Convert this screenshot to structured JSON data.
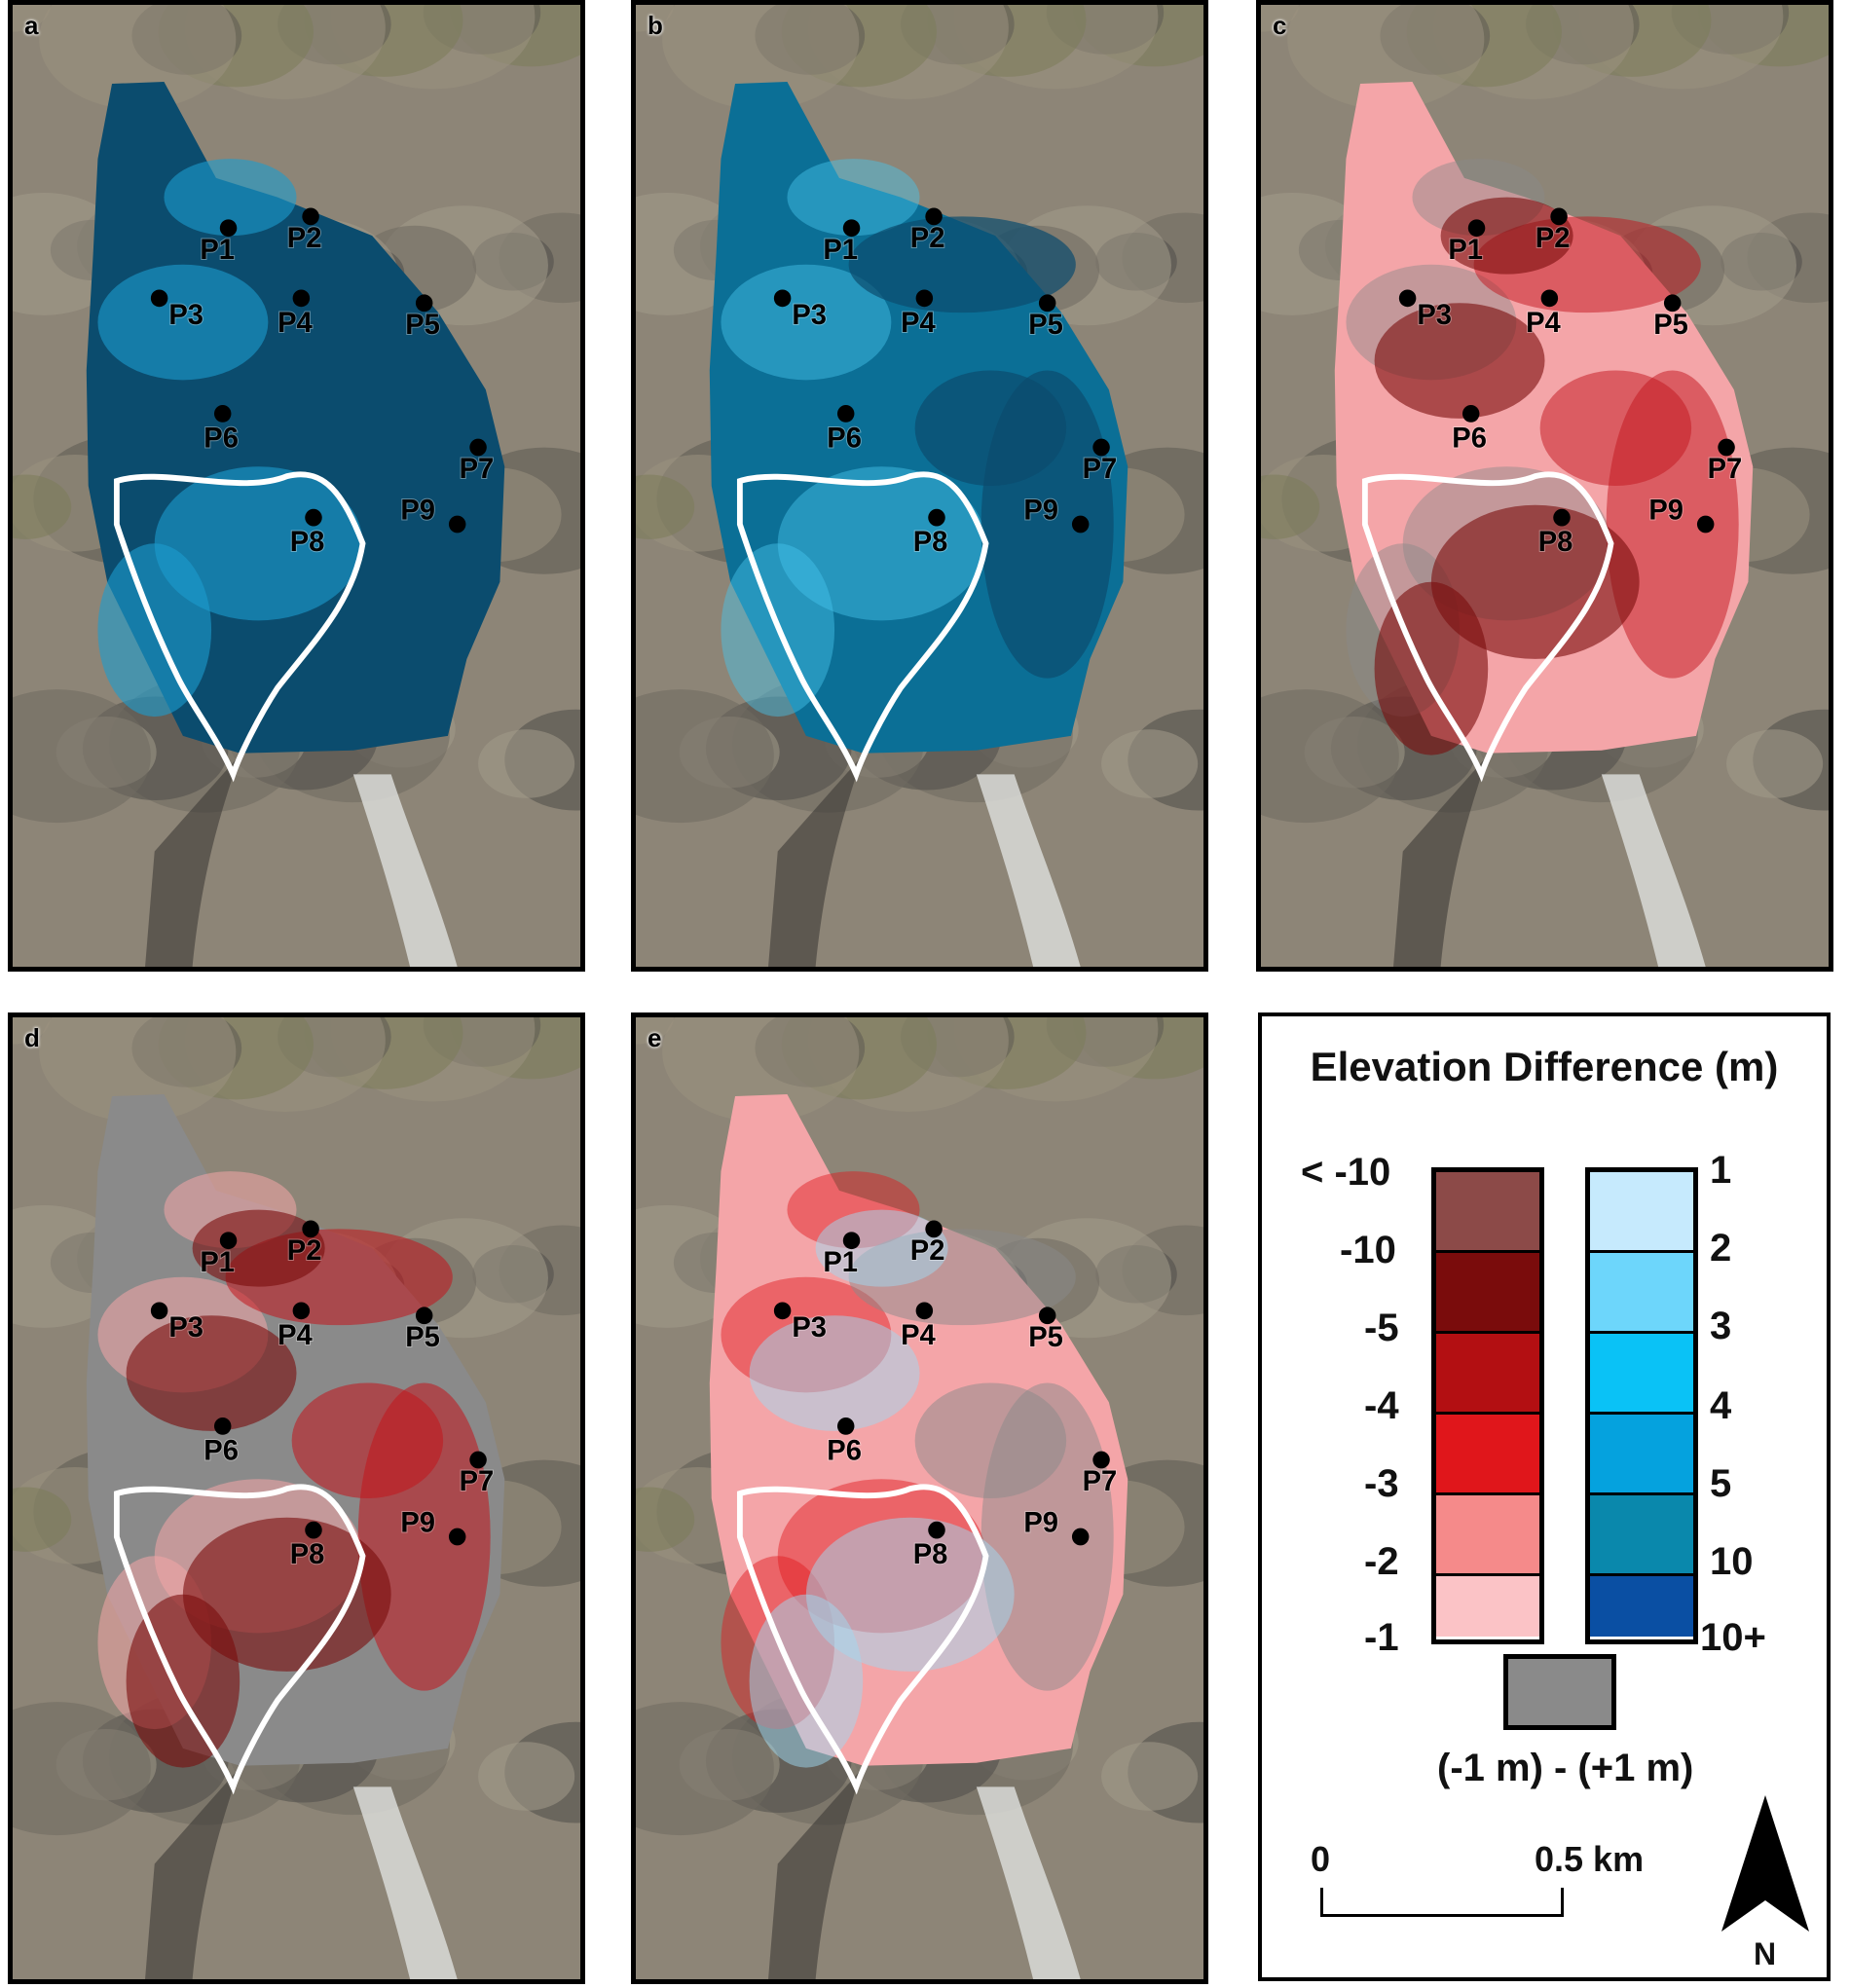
{
  "panels": [
    {
      "letter": "a",
      "theme": "a"
    },
    {
      "letter": "b",
      "theme": "b"
    },
    {
      "letter": "c",
      "theme": "c"
    },
    {
      "letter": "d",
      "theme": "d"
    },
    {
      "letter": "e",
      "theme": "e"
    }
  ],
  "points": {
    "a": [
      "P1",
      "P2",
      "P3",
      "P4",
      "P5",
      "P6",
      "P7",
      "P8",
      "P9"
    ],
    "b": [
      "P1",
      "P2",
      "P3",
      "P4",
      "P5",
      "P6",
      "P7",
      "P8",
      "P9"
    ],
    "c": [
      "P1",
      "P2",
      "P3",
      "P4",
      "P5",
      "P6",
      "P7",
      "P8",
      "P9"
    ],
    "d": [
      "P1",
      "P2",
      "P3",
      "P4",
      "P5",
      "P6",
      "P7",
      "P8",
      "P9"
    ],
    "e": [
      "P1",
      "P2",
      "P3",
      "P4",
      "P5",
      "P6",
      "P7",
      "P8",
      "P9"
    ]
  },
  "legend": {
    "title": "Elevation Difference (m)",
    "negative_labels": [
      "< -10",
      "-10",
      "-5",
      "-4",
      "-3",
      "-2",
      "-1"
    ],
    "positive_labels": [
      "1",
      "2",
      "3",
      "4",
      "5",
      "10",
      "10+"
    ],
    "negative_colors": [
      "#8c4a48",
      "#7a0c0c",
      "#b30f12",
      "#e0161b",
      "#f58a8a",
      "#fbc3c6"
    ],
    "positive_colors": [
      "#c6eafd",
      "#6dd6fb",
      "#0ac2f6",
      "#05a2de",
      "#0a88ac",
      "#0a4fa3"
    ],
    "neutral_color": "#8a8a8a",
    "neutral_label": "(-1 m) - (+1 m)",
    "scale_start": "0",
    "scale_end": "0.5 km",
    "north": "N"
  }
}
